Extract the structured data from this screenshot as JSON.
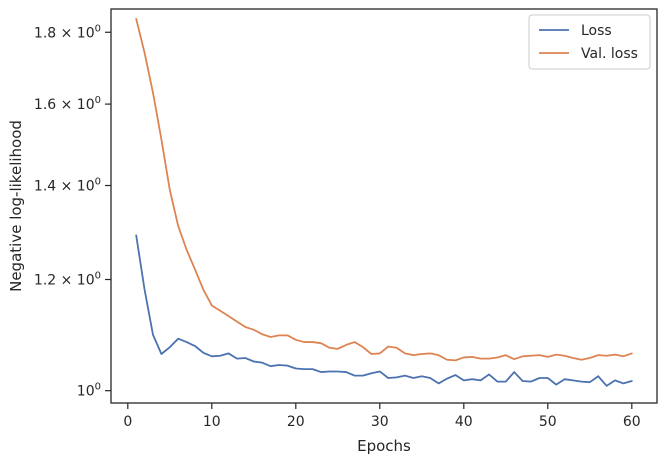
{
  "chart_data": {
    "type": "line",
    "title": "",
    "xlabel": "Epochs",
    "ylabel": "Negative log-likelihood",
    "y_scale": "log",
    "xlim": [
      -2,
      63
    ],
    "ylim": [
      0.98,
      1.87
    ],
    "x_ticks": [
      0,
      10,
      20,
      30,
      40,
      50,
      60
    ],
    "y_ticks": [
      {
        "value": 1.0,
        "base": "10",
        "exp": "0"
      },
      {
        "value": 1.2,
        "base": "1.2 × 10",
        "exp": "0"
      },
      {
        "value": 1.4,
        "base": "1.4 × 10",
        "exp": "0"
      },
      {
        "value": 1.6,
        "base": "1.6 × 10",
        "exp": "0"
      },
      {
        "value": 1.8,
        "base": "1.8 × 10",
        "exp": "0"
      }
    ],
    "grid": false,
    "legend_position": "top-right",
    "x": [
      1,
      2,
      3,
      4,
      5,
      6,
      7,
      8,
      9,
      10,
      11,
      12,
      13,
      14,
      15,
      16,
      17,
      18,
      19,
      20,
      21,
      22,
      23,
      24,
      25,
      26,
      27,
      28,
      29,
      30,
      31,
      32,
      33,
      34,
      35,
      36,
      37,
      38,
      39,
      40,
      41,
      42,
      43,
      44,
      45,
      46,
      47,
      48,
      49,
      50,
      51,
      52,
      53,
      54,
      55,
      56,
      57,
      58,
      59,
      60
    ],
    "series": [
      {
        "name": "Loss",
        "color": "#4c72b0",
        "values": [
          1.29,
          1.18,
          1.096,
          1.062,
          1.074,
          1.089,
          1.083,
          1.076,
          1.064,
          1.058,
          1.059,
          1.063,
          1.054,
          1.055,
          1.049,
          1.047,
          1.041,
          1.043,
          1.042,
          1.037,
          1.036,
          1.036,
          1.031,
          1.032,
          1.032,
          1.031,
          1.025,
          1.025,
          1.029,
          1.032,
          1.021,
          1.022,
          1.025,
          1.021,
          1.024,
          1.021,
          1.012,
          1.02,
          1.026,
          1.017,
          1.019,
          1.017,
          1.027,
          1.015,
          1.015,
          1.031,
          1.016,
          1.015,
          1.021,
          1.021,
          1.01,
          1.019,
          1.017,
          1.015,
          1.014,
          1.024,
          1.008,
          1.017,
          1.012,
          1.016
        ]
      },
      {
        "name": "Val. loss",
        "color": "#dd8452",
        "values": [
          1.84,
          1.74,
          1.63,
          1.51,
          1.39,
          1.31,
          1.26,
          1.22,
          1.18,
          1.15,
          1.14,
          1.13,
          1.12,
          1.11,
          1.105,
          1.097,
          1.092,
          1.095,
          1.095,
          1.087,
          1.083,
          1.083,
          1.081,
          1.073,
          1.071,
          1.078,
          1.083,
          1.074,
          1.062,
          1.063,
          1.075,
          1.073,
          1.063,
          1.06,
          1.062,
          1.063,
          1.06,
          1.052,
          1.051,
          1.056,
          1.057,
          1.054,
          1.054,
          1.056,
          1.06,
          1.053,
          1.058,
          1.059,
          1.06,
          1.057,
          1.061,
          1.059,
          1.055,
          1.052,
          1.055,
          1.06,
          1.059,
          1.061,
          1.058,
          1.063
        ]
      }
    ]
  }
}
